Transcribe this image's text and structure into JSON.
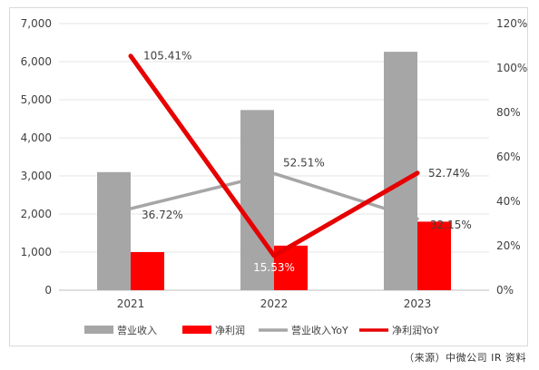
{
  "chart_data": {
    "type": "bar",
    "categories": [
      "2021",
      "2022",
      "2023"
    ],
    "y_left": {
      "min": 0,
      "max": 7000,
      "step": 1000,
      "ticks": [
        "0",
        "1,000",
        "2,000",
        "3,000",
        "4,000",
        "5,000",
        "6,000",
        "7,000"
      ]
    },
    "y_right": {
      "min": 0,
      "max": 120,
      "step": 20,
      "ticks": [
        "0%",
        "20%",
        "40%",
        "60%",
        "80%",
        "100%",
        "120%"
      ]
    },
    "series": [
      {
        "name": "营业收入",
        "kind": "bar",
        "axis": "left",
        "color": "#a6a6a6",
        "values": [
          3100,
          4730,
          6260
        ]
      },
      {
        "name": "净利润",
        "kind": "bar",
        "axis": "left",
        "color": "#ff0000",
        "values": [
          1000,
          1170,
          1800
        ]
      },
      {
        "name": "营业收入YoY",
        "kind": "line",
        "axis": "right",
        "color": "#a6a6a6",
        "values": [
          36.72,
          52.51,
          32.15
        ],
        "labels": [
          "36.72%",
          "52.51%",
          "32.15%"
        ]
      },
      {
        "name": "净利润YoY",
        "kind": "line",
        "axis": "right",
        "color": "#e60000",
        "values": [
          105.41,
          15.53,
          52.74
        ],
        "labels": [
          "105.41%",
          "15.53%",
          "52.74%"
        ]
      }
    ],
    "grid": true,
    "legend_position": "bottom"
  },
  "source_note": "（来源）中微公司 IR 资料"
}
